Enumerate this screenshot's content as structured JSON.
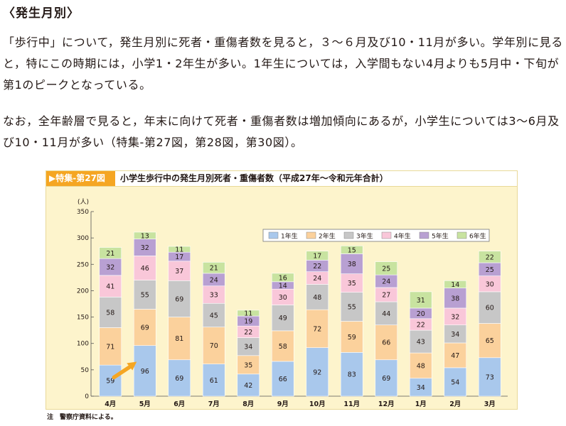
{
  "heading": "〈発生月別〉",
  "paragraphs": {
    "p1": "「歩行中」について，発生月別に死者・重傷者数を見ると，３～６月及び10・11月が多い。学年別に見ると，特にこの時期には，小学1・2年生が多い。1年生については，入学間もない4月よりも5月中・下旬が第1のピークとなっている。",
    "p2": "なお，全年齢層で見ると，年末に向けて死者・重傷者数は増加傾向にあるが，小学生については3～6月及び10・11月が多い（特集-第27図，第28図，第30図）。"
  },
  "figure": {
    "tag": "特集-第27図",
    "title": "小学生歩行中の発生月別死者・重傷者数（平成27年～令和元年合計）"
  },
  "note": "注　警察庁資料による。",
  "chart_data": {
    "type": "bar",
    "stacked": true,
    "title": "",
    "ylabel": "(人)",
    "ylim": [
      0,
      350
    ],
    "yticks": [
      0,
      50,
      100,
      150,
      200,
      250,
      300,
      350
    ],
    "categories": [
      "4月",
      "5月",
      "6月",
      "7月",
      "8月",
      "9月",
      "10月",
      "11月",
      "12月",
      "1月",
      "2月",
      "3月"
    ],
    "series": [
      {
        "name": "1年生",
        "color": "#a9c8ec",
        "values": [
          59,
          96,
          69,
          61,
          42,
          66,
          92,
          83,
          69,
          34,
          54,
          73
        ]
      },
      {
        "name": "2年生",
        "color": "#fbd19c",
        "values": [
          71,
          69,
          81,
          70,
          35,
          58,
          72,
          59,
          66,
          48,
          47,
          65
        ]
      },
      {
        "name": "3年生",
        "color": "#c7c7c7",
        "values": [
          58,
          55,
          69,
          45,
          34,
          49,
          48,
          55,
          44,
          43,
          34,
          60
        ]
      },
      {
        "name": "4年生",
        "color": "#f9c7d9",
        "values": [
          41,
          46,
          37,
          33,
          22,
          30,
          24,
          35,
          27,
          22,
          32,
          30
        ]
      },
      {
        "name": "5年生",
        "color": "#b8a0d2",
        "values": [
          32,
          32,
          17,
          24,
          19,
          14,
          22,
          38,
          24,
          20,
          38,
          25
        ]
      },
      {
        "name": "6年生",
        "color": "#c8e3a0",
        "values": [
          21,
          13,
          11,
          21,
          11,
          16,
          17,
          15,
          25,
          31,
          14,
          22
        ]
      }
    ],
    "legend_position": "top-right",
    "grid": false,
    "annotation": {
      "type": "arrow",
      "category": "5月",
      "series": "1年生",
      "color": "#f5a623"
    }
  }
}
